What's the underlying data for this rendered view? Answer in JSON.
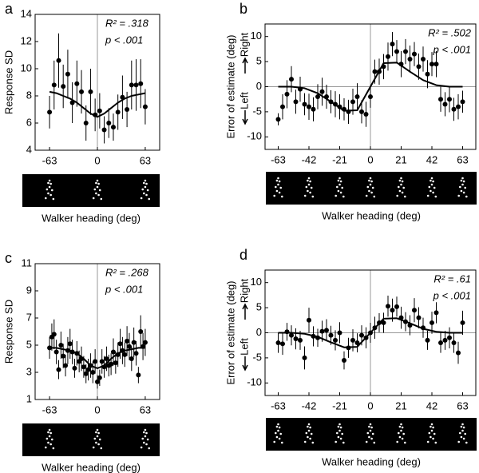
{
  "chart_data": [
    {
      "type": "scatter",
      "label": "a",
      "ylabel": "Response SD",
      "xlabel": "Walker heading (deg)",
      "annotations": [
        "R² = .318",
        "p < .001"
      ],
      "xlim": [
        -82,
        82
      ],
      "ylim": [
        4,
        14
      ],
      "xticks": [
        -63,
        0,
        63
      ],
      "yticks": [
        4,
        6,
        8,
        10,
        12,
        14
      ],
      "xref": 0,
      "points": {
        "x": [
          -63,
          -57,
          -51,
          -45,
          -39,
          -33,
          -27,
          -21,
          -15,
          -9,
          -3,
          3,
          9,
          15,
          21,
          27,
          33,
          39,
          45,
          51,
          57,
          63
        ],
        "values": [
          6.8,
          8.8,
          10.6,
          8.7,
          9.6,
          7.5,
          8.9,
          8.3,
          6.0,
          8.3,
          6.6,
          6.9,
          5.5,
          6.0,
          5.7,
          6.8,
          7.9,
          7.0,
          8.8,
          8.8,
          8.9,
          7.2
        ],
        "errors": [
          1.2,
          1.8,
          2.0,
          1.6,
          1.8,
          1.5,
          1.7,
          1.6,
          1.3,
          1.7,
          1.2,
          1.3,
          1.0,
          1.1,
          1.0,
          1.3,
          1.6,
          1.3,
          1.8,
          1.9,
          1.8,
          1.3
        ]
      },
      "fit": {
        "x": [
          -63,
          -54,
          -45,
          -36,
          -27,
          -18,
          -9,
          0,
          9,
          18,
          27,
          36,
          45,
          54,
          63
        ],
        "values": [
          8.3,
          8.2,
          8.0,
          7.8,
          7.5,
          7.1,
          6.7,
          6.45,
          6.7,
          7.1,
          7.5,
          7.8,
          8.0,
          8.1,
          8.2
        ]
      }
    },
    {
      "type": "scatter",
      "label": "b",
      "ylabel": "Error of estimate (deg)",
      "xlabel": "Walker heading (deg)",
      "annotations": [
        "R² = .502",
        "p < .001"
      ],
      "direction_labels": [
        "Right",
        "Left"
      ],
      "xlim": [
        -72,
        72
      ],
      "ylim": [
        -12.5,
        12.5
      ],
      "xticks": [
        -63,
        -42,
        -21,
        0,
        21,
        42,
        63
      ],
      "yticks": [
        -10,
        -5,
        0,
        5,
        10
      ],
      "xref": 0,
      "yref": 0,
      "points": {
        "x": [
          -63,
          -60,
          -57,
          -54,
          -51,
          -48,
          -45,
          -42,
          -39,
          -36,
          -33,
          -30,
          -27,
          -24,
          -21,
          -18,
          -15,
          -12,
          -9,
          -6,
          -3,
          0,
          3,
          6,
          9,
          12,
          15,
          18,
          21,
          24,
          27,
          30,
          33,
          36,
          39,
          42,
          45,
          48,
          51,
          54,
          57,
          60,
          63
        ],
        "values": [
          -6.5,
          -4,
          -1.5,
          1.5,
          -3,
          -0.5,
          -3.5,
          -4,
          -4.5,
          -2,
          -1,
          -2,
          -3,
          -3.5,
          -4,
          -4.5,
          -5,
          -3,
          -2,
          -5,
          -5.5,
          -2,
          3,
          3,
          4,
          6,
          8.5,
          7,
          4.5,
          7,
          5.5,
          6.5,
          4,
          5.5,
          2.5,
          4.5,
          4.5,
          -2.5,
          -3.5,
          -2.5,
          -4.5,
          -4,
          -3
        ],
        "errors": [
          1.2,
          2.5,
          2.8,
          2.6,
          2.4,
          2.5,
          2.2,
          2.6,
          2.4,
          2.5,
          2.8,
          2.4,
          2.3,
          2.6,
          2.5,
          2.2,
          2.4,
          2.6,
          2.7,
          2.3,
          2.5,
          2.2,
          2.4,
          2.6,
          2.5,
          2.8,
          2.4,
          2.3,
          2.6,
          2.5,
          2.7,
          2.4,
          2.6,
          2.5,
          2.8,
          2.4,
          2.6,
          2.5,
          2.4,
          2.6,
          2.3,
          2.5,
          2.2
        ]
      },
      "fit": {
        "x": [
          -63,
          -54,
          -45,
          -36,
          -27,
          -18,
          -9,
          0,
          9,
          18,
          27,
          36,
          45,
          54,
          63
        ],
        "values": [
          0,
          0,
          -0.3,
          -1.3,
          -3,
          -4.8,
          -4.7,
          0,
          4.7,
          4.8,
          3,
          1.3,
          0.3,
          0,
          0
        ]
      }
    },
    {
      "type": "scatter",
      "label": "c",
      "ylabel": "Response SD",
      "xlabel": "Walker heading (deg)",
      "annotations": [
        "R² = .268",
        "p < .001"
      ],
      "xlim": [
        -82,
        82
      ],
      "ylim": [
        1,
        11
      ],
      "xticks": [
        -63,
        0,
        63
      ],
      "yticks": [
        1,
        3,
        5,
        7,
        9,
        11
      ],
      "xref": 0,
      "points": {
        "x": [
          -63,
          -60,
          -57,
          -54,
          -51,
          -48,
          -45,
          -42,
          -39,
          -36,
          -33,
          -30,
          -27,
          -24,
          -21,
          -18,
          -15,
          -12,
          -9,
          -6,
          -3,
          0,
          3,
          6,
          9,
          12,
          15,
          18,
          21,
          24,
          27,
          30,
          33,
          36,
          39,
          42,
          45,
          48,
          51,
          54,
          57,
          60,
          63
        ],
        "values": [
          4.8,
          5.6,
          5.8,
          4.5,
          3.2,
          5.0,
          4.2,
          3.5,
          4.6,
          5.1,
          4.5,
          3.3,
          4.4,
          3.8,
          4.0,
          3.4,
          2.9,
          3.2,
          3.5,
          3.0,
          3.8,
          2.3,
          2.6,
          3.8,
          3.4,
          4.0,
          3.5,
          3.6,
          4.5,
          3.7,
          4.3,
          5.1,
          4.6,
          4.3,
          5.3,
          4.9,
          4.0,
          5.2,
          4.4,
          2.8,
          6.0,
          4.9,
          5.2
        ],
        "errors": [
          0.8,
          1.0,
          1.1,
          0.9,
          0.7,
          1.0,
          0.9,
          0.8,
          1.0,
          1.1,
          0.9,
          0.7,
          0.9,
          0.8,
          0.9,
          0.8,
          0.7,
          0.8,
          0.9,
          0.8,
          0.9,
          0.5,
          0.6,
          0.9,
          0.8,
          0.9,
          0.8,
          0.8,
          1.0,
          0.8,
          0.9,
          1.1,
          1.0,
          0.9,
          1.1,
          1.0,
          0.9,
          1.1,
          0.9,
          0.6,
          1.2,
          1.0,
          1.0
        ]
      },
      "fit": {
        "x": [
          -63,
          -54,
          -45,
          -36,
          -27,
          -18,
          -9,
          0,
          9,
          18,
          27,
          36,
          45,
          54,
          63
        ],
        "values": [
          4.8,
          4.8,
          4.7,
          4.6,
          4.4,
          4.0,
          3.5,
          3.3,
          3.5,
          4.0,
          4.4,
          4.6,
          4.7,
          4.8,
          4.8
        ]
      }
    },
    {
      "type": "scatter",
      "label": "d",
      "ylabel": "Error of estimate (deg)",
      "xlabel": "Walker heading (deg)",
      "annotations": [
        "R² = .61",
        "p < .001"
      ],
      "direction_labels": [
        "Right",
        "Left"
      ],
      "xlim": [
        -72,
        72
      ],
      "ylim": [
        -12.5,
        12.5
      ],
      "xticks": [
        -63,
        -42,
        -21,
        0,
        21,
        42,
        63
      ],
      "yticks": [
        -10,
        -5,
        0,
        5,
        10
      ],
      "xref": 0,
      "yref": 0,
      "points": {
        "x": [
          -63,
          -60,
          -57,
          -54,
          -51,
          -48,
          -45,
          -42,
          -39,
          -36,
          -33,
          -30,
          -27,
          -24,
          -21,
          -18,
          -15,
          -12,
          -9,
          -6,
          -3,
          0,
          3,
          6,
          9,
          12,
          15,
          18,
          21,
          24,
          27,
          30,
          33,
          36,
          39,
          42,
          45,
          48,
          51,
          54,
          57,
          60,
          63
        ],
        "values": [
          -2,
          -2.2,
          0.2,
          -0.5,
          -1.2,
          -1.5,
          -5,
          2.5,
          -0.7,
          -1,
          0.3,
          0.5,
          -0.5,
          -1.5,
          0,
          -5.5,
          -3,
          -1.5,
          -2,
          -0.5,
          -1,
          0,
          1,
          2,
          2,
          5.3,
          4.5,
          5.2,
          3,
          2.2,
          1.5,
          4.5,
          3,
          1,
          -1.5,
          2,
          4,
          -2,
          -1.5,
          -1,
          -2,
          -4,
          2
        ],
        "errors": [
          2,
          2.2,
          1.8,
          2,
          2.1,
          1.9,
          2.3,
          2.5,
          2,
          1.8,
          2.1,
          2.2,
          1.9,
          2,
          2.1,
          1.8,
          2,
          2.2,
          1.9,
          2,
          2.1,
          2,
          2.2,
          1.9,
          2,
          2.1,
          2.3,
          2,
          2.2,
          1.9,
          2,
          2.4,
          2.1,
          2,
          1.9,
          2.2,
          2.1,
          2,
          1.9,
          2.1,
          2,
          2.2,
          2.4
        ]
      },
      "fit": {
        "x": [
          -63,
          -54,
          -45,
          -36,
          -27,
          -18,
          -9,
          0,
          9,
          18,
          27,
          36,
          45,
          54,
          63
        ],
        "values": [
          0,
          0,
          -0.2,
          -0.8,
          -1.9,
          -2.9,
          -2.8,
          0,
          2.8,
          2.9,
          1.9,
          0.8,
          0.2,
          0,
          0
        ]
      }
    }
  ]
}
